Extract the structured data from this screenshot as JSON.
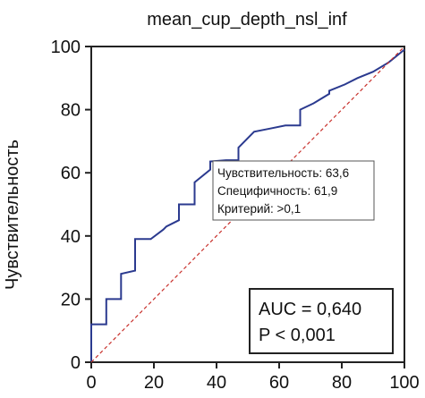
{
  "chart_data": {
    "type": "line",
    "title": "mean_cup_depth_nsl_inf",
    "ylabel": "Чувствительность",
    "xlabel": "",
    "xlim": [
      0,
      100
    ],
    "ylim": [
      0,
      100
    ],
    "x_ticks": [
      "0",
      "20",
      "40",
      "60",
      "80",
      "100"
    ],
    "y_ticks": [
      "0",
      "20",
      "40",
      "60",
      "80",
      "100"
    ],
    "grid": false,
    "series": [
      {
        "color": "#2b3a8f",
        "x": [
          0,
          0,
          0.8,
          4.8,
          4.8,
          9.5,
          9.5,
          14,
          14,
          19,
          23,
          24,
          28,
          28,
          33,
          33,
          38,
          38,
          43,
          47,
          47,
          52,
          57,
          62,
          66.7,
          66.7,
          71,
          76,
          76,
          81,
          85,
          90,
          95,
          100
        ],
        "y": [
          0,
          12,
          12,
          12,
          20,
          20,
          28,
          29,
          39,
          39,
          42,
          43,
          45,
          50,
          50,
          57,
          61,
          63.6,
          64,
          64,
          68,
          73,
          74,
          75,
          75,
          80,
          82,
          85,
          86,
          88,
          90,
          92,
          95,
          99
        ]
      },
      {
        "color": "#c8312c",
        "dashed": true,
        "x": [
          0,
          100
        ],
        "y": [
          0,
          100
        ]
      }
    ],
    "tooltip": {
      "lines": [
        "Чувствительность: 63,6",
        "Специфичность: 61,9",
        "Критерий: >0,1"
      ]
    },
    "annotation_box": {
      "lines": [
        "AUC = 0,640",
        "P < 0,001"
      ]
    }
  }
}
